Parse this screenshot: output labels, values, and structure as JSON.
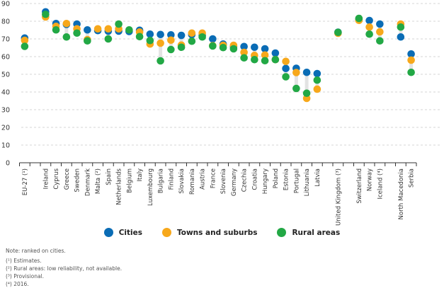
{
  "chart_data": {
    "type": "scatter",
    "title": "",
    "xlabel": "",
    "ylabel": "",
    "ylim": [
      0,
      90
    ],
    "yticks": [
      0,
      10,
      20,
      30,
      40,
      50,
      60,
      70,
      80,
      90
    ],
    "grid": true,
    "legend_position": "bottom-center",
    "categories": [
      "EU-27 (¹)",
      "",
      "Ireland",
      "Cyprus",
      "Greece",
      "Sweden",
      "Denmark",
      "Malta (²)",
      "Spain",
      "Netherlands",
      "Belgium",
      "Italy",
      "Luxembourg",
      "Bulgaria",
      "Finland",
      "Slovakia",
      "Romania",
      "Austria",
      "France",
      "Slovenia",
      "Germany",
      "Czechia",
      "Croatia",
      "Hungary",
      "Poland",
      "Estonia",
      "Portugal",
      "Lithuania",
      "Latvia",
      "",
      "United Kingdom (³)",
      "",
      "Switzerland",
      "Norway",
      "Iceland (⁴)",
      "",
      "North Macedonia",
      "Serbia"
    ],
    "series": [
      {
        "name": "Cities",
        "color": "#0a6cb5",
        "values": [
          70.5,
          null,
          85.3,
          78.7,
          78.2,
          78.4,
          75.1,
          74.7,
          74.4,
          74.4,
          74.2,
          74.9,
          72.7,
          72.5,
          72.3,
          72.0,
          72.4,
          72.0,
          70.0,
          67.1,
          65.6,
          65.7,
          65.3,
          64.4,
          62.0,
          53.3,
          53.4,
          51.1,
          50.4,
          null,
          73.8,
          null,
          81.0,
          80.4,
          78.4,
          null,
          71.1,
          61.5
        ]
      },
      {
        "name": "Towns and suburbs",
        "color": "#f7a81b",
        "values": [
          69.2,
          null,
          82.4,
          77.1,
          78.7,
          75.7,
          69.6,
          75.7,
          75.7,
          75.7,
          null,
          73.9,
          67.1,
          67.6,
          69.3,
          66.5,
          73.3,
          73.3,
          66.2,
          66.4,
          66.4,
          62.4,
          60.7,
          60.9,
          58.3,
          57.3,
          51.0,
          36.4,
          41.6,
          null,
          73.2,
          null,
          80.5,
          76.7,
          74.0,
          null,
          78.4,
          58.0
        ]
      },
      {
        "name": "Rural areas",
        "color": "#22a845",
        "values": [
          65.8,
          null,
          83.9,
          75.1,
          71.1,
          73.3,
          68.9,
          null,
          70.0,
          78.4,
          75.1,
          71.3,
          69.1,
          57.6,
          64.0,
          65.3,
          68.7,
          71.1,
          66.0,
          65.1,
          64.4,
          59.3,
          58.3,
          57.7,
          58.3,
          48.6,
          42.0,
          39.3,
          46.7,
          null,
          73.7,
          null,
          81.6,
          72.7,
          68.9,
          null,
          76.7,
          51.1
        ]
      }
    ]
  },
  "legend": {
    "items": [
      {
        "label": "Cities",
        "color": "#0a6cb5"
      },
      {
        "label": "Towns and suburbs",
        "color": "#f7a81b"
      },
      {
        "label": "Rural areas",
        "color": "#22a845"
      }
    ]
  },
  "notes": {
    "main": "Note: ranked on cities.",
    "footnotes": [
      "(¹) Estimates.",
      "(²) Rural areas: low reliability, not available.",
      "(³) Provisional.",
      "(⁴) 2016."
    ]
  }
}
